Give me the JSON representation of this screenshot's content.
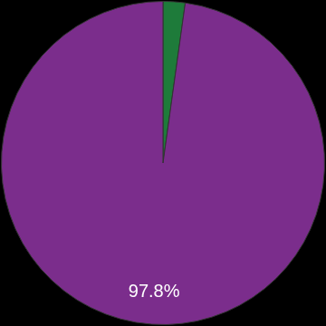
{
  "chart_data": {
    "type": "pie",
    "values": [
      2.2,
      97.8
    ],
    "colors": [
      "#1e7b3a",
      "#7b2d8c"
    ],
    "value_labels": [
      null,
      "97.8%"
    ]
  }
}
